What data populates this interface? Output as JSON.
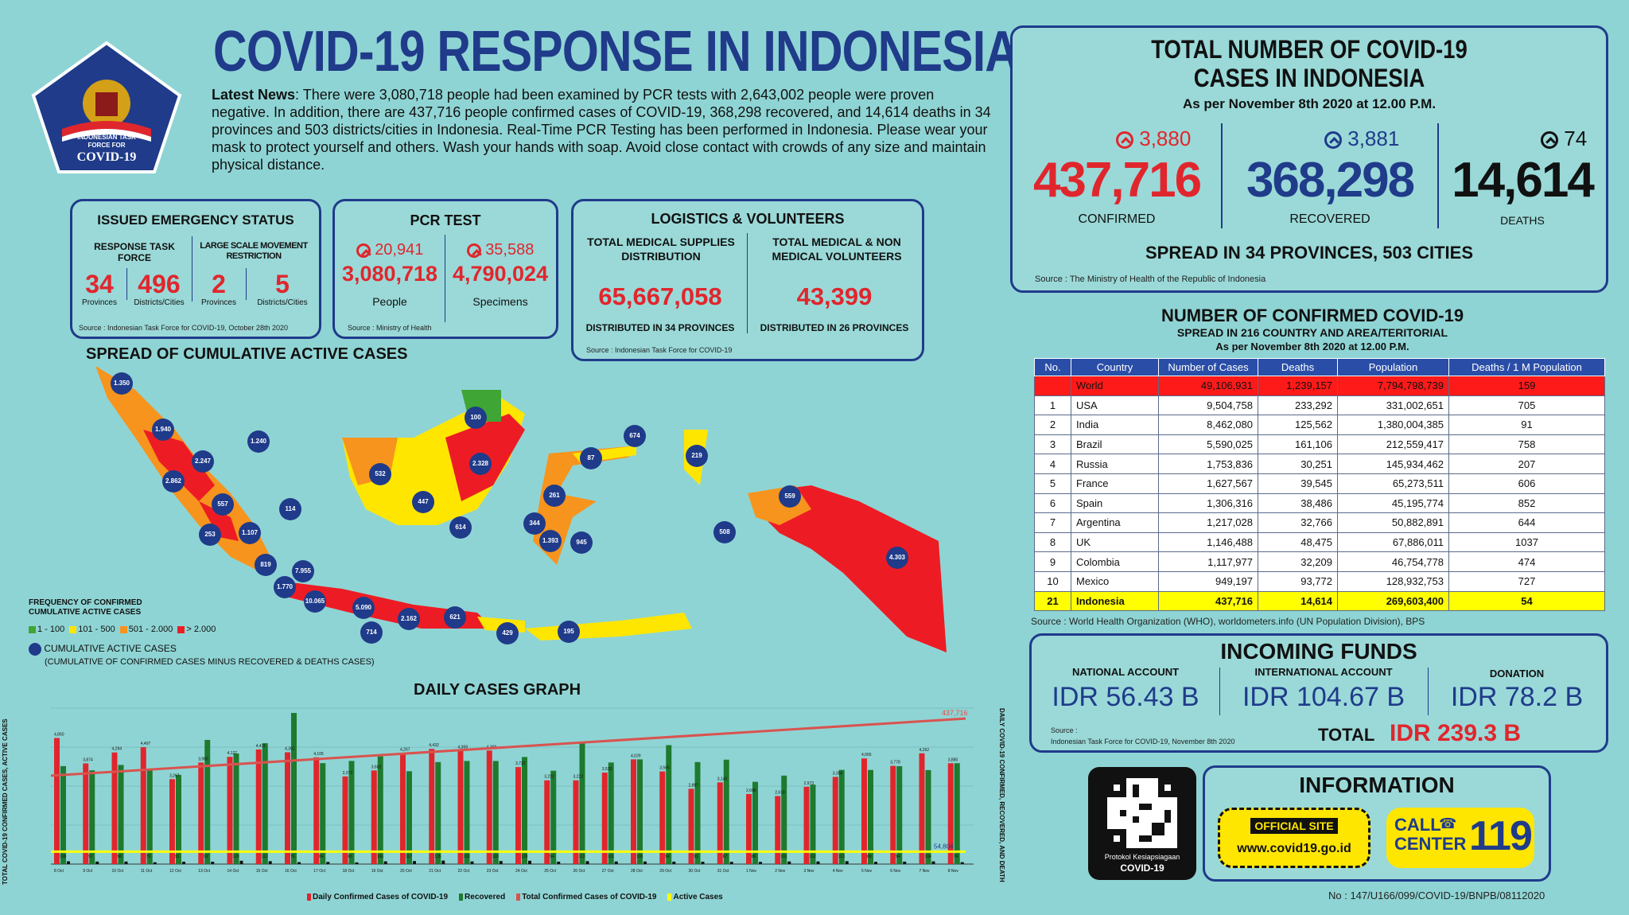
{
  "header": {
    "title": "COVID-19 RESPONSE IN INDONESIA",
    "logo_line1": "INDONESIAN TASK",
    "logo_line2": "FORCE FOR",
    "logo_line3": "COVID-19"
  },
  "news": {
    "label": "Latest News",
    "text": ": There were 3,080,718 people had been examined by PCR tests with 2,643,002 people were proven negative. In addition, there are 437,716 people confirmed cases of COVID-19, 368,298 recovered, and 14,614 deaths in 34 provinces and 503 districts/cities in Indonesia. Real-Time PCR Testing has been performed in Indonesia. Please wear your mask to protect yourself and others. Wash your hands with soap. Avoid close contact with crowds of any size and maintain physical distance."
  },
  "emergency": {
    "title": "ISSUED EMERGENCY STATUS",
    "col1_title": "RESPONSE TASK FORCE",
    "col2_title": "LARGE SCALE MOVEMENT RESTRICTION",
    "v1": "34",
    "l1": "Provinces",
    "v2": "496",
    "l2": "Districts/Cities",
    "v3": "2",
    "l3": "Provinces",
    "v4": "5",
    "l4": "Districts/Cities",
    "source": "Source : Indonesian Task Force for COVID-19, October 28th 2020"
  },
  "pcr": {
    "title": "PCR TEST",
    "people_inc": "20,941",
    "people_val": "3,080,718",
    "people_label": "People",
    "spec_inc": "35,588",
    "spec_val": "4,790,024",
    "spec_label": "Specimens",
    "source": "Source : Ministry of Health"
  },
  "logistics": {
    "title": "LOGISTICS & VOLUNTEERS",
    "c1_title": "TOTAL MEDICAL SUPPLIES DISTRIBUTION",
    "c1_val": "65,667,058",
    "c1_sub": "DISTRIBUTED IN 34 PROVINCES",
    "c2_title": "TOTAL MEDICAL & NON MEDICAL VOLUNTEERS",
    "c2_val": "43,399",
    "c2_sub": "DISTRIBUTED IN 26 PROVINCES",
    "source": "Source : Indonesian Task Force for COVID-19"
  },
  "totals": {
    "title1": "TOTAL NUMBER OF COVID-19",
    "title2": "CASES IN INDONESIA",
    "date": "As per November 8th 2020 at 12.00 P.M.",
    "confirmed_inc": "3,880",
    "confirmed": "437,716",
    "confirmed_label": "CONFIRMED",
    "recovered_inc": "3,881",
    "recovered": "368,298",
    "recovered_label": "RECOVERED",
    "deaths_inc": "74",
    "deaths": "14,614",
    "deaths_label": "DEATHS",
    "spread": "SPREAD IN 34 PROVINCES, 503 CITIES",
    "source": "Source : The Ministry of Health of the Republic of Indonesia"
  },
  "world": {
    "title": "NUMBER OF CONFIRMED COVID-19",
    "subtitle": "SPREAD IN 216 COUNTRY AND AREA/TERITORIAL",
    "date": "As per November 8th 2020 at 12.00 P.M.",
    "headers": [
      "No.",
      "Country",
      "Number of Cases",
      "Deaths",
      "Population",
      "Deaths / 1 M Population"
    ],
    "rows": [
      [
        "",
        "World",
        "49,106,931",
        "1,239,157",
        "7,794,798,739",
        "159"
      ],
      [
        "1",
        "USA",
        "9,504,758",
        "233,292",
        "331,002,651",
        "705"
      ],
      [
        "2",
        "India",
        "8,462,080",
        "125,562",
        "1,380,004,385",
        "91"
      ],
      [
        "3",
        "Brazil",
        "5,590,025",
        "161,106",
        "212,559,417",
        "758"
      ],
      [
        "4",
        "Russia",
        "1,753,836",
        "30,251",
        "145,934,462",
        "207"
      ],
      [
        "5",
        "France",
        "1,627,567",
        "39,545",
        "65,273,511",
        "606"
      ],
      [
        "6",
        "Spain",
        "1,306,316",
        "38,486",
        "45,195,774",
        "852"
      ],
      [
        "7",
        "Argentina",
        "1,217,028",
        "32,766",
        "50,882,891",
        "644"
      ],
      [
        "8",
        "UK",
        "1,146,488",
        "48,475",
        "67,886,011",
        "1037"
      ],
      [
        "9",
        "Colombia",
        "1,117,977",
        "32,209",
        "46,754,778",
        "474"
      ],
      [
        "10",
        "Mexico",
        "949,197",
        "93,772",
        "128,932,753",
        "727"
      ],
      [
        "21",
        "Indonesia",
        "437,716",
        "14,614",
        "269,603,400",
        "54"
      ]
    ],
    "source": "Source : World Health Organization (WHO), worldometers.info (UN Population Division), BPS"
  },
  "funds": {
    "title": "INCOMING FUNDS",
    "national_label": "NATIONAL ACCOUNT",
    "national": "IDR 56.43 B",
    "international_label": "INTERNATIONAL ACCOUNT",
    "international": "IDR 104.67 B",
    "donation_label": "DONATION",
    "donation": "IDR 78.2 B",
    "source1": "Source :",
    "source2": "Indonesian Task Force for COVID-19, November 8th 2020",
    "total_label": "TOTAL",
    "total": "IDR 239.3 B"
  },
  "info": {
    "qr_label1": "Protokol Kesiapsiagaan",
    "qr_label2": "COVID-19",
    "title": "INFORMATION",
    "official_label": "OFFICIAL SITE",
    "official_url": "www.covid19.go.id",
    "call_label1": "CALL",
    "call_label2": "CENTER",
    "call_number": "119"
  },
  "map": {
    "title": "SPREAD OF CUMULATIVE ACTIVE CASES",
    "legend_title1": "FREQUENCY OF CONFIRMED",
    "legend_title2": "CUMULATIVE ACTIVE CASES",
    "legend": [
      {
        "label": "1 - 100",
        "color": "#3fa535"
      },
      {
        "label": "101 - 500",
        "color": "#ffe600"
      },
      {
        "label": "501 - 2.000",
        "color": "#f7941d"
      },
      {
        "label": "> 2.000",
        "color": "#ed1c24"
      }
    ],
    "bubble_legend1": "CUMULATIVE ACTIVE CASES",
    "bubble_legend2": "(CUMULATIVE OF CONFIRMED CASES MINUS RECOVERED & DEATHS CASES)",
    "bubbles": [
      "1.350",
      "1.940",
      "2.247",
      "1.240",
      "2.862",
      "557",
      "114",
      "253",
      "1.107",
      "819",
      "7.955",
      "1.770",
      "10.065",
      "5.090",
      "714",
      "2.162",
      "621",
      "429",
      "195",
      "532",
      "447",
      "614",
      "100",
      "2.328",
      "87",
      "674",
      "219",
      "261",
      "344",
      "1.393",
      "945",
      "508",
      "559",
      "4.303"
    ]
  },
  "daily_chart": {
    "title": "DAILY CASES GRAPH",
    "y_left": "TOTAL COVID-19 CONFIRMED CASES, ACTIVE CASES",
    "y_right": "DAILY COVID-19 CONFIRMED, RECOVERED, AND DEATH",
    "total_label": "437,716",
    "active_label": "54,804",
    "legend": [
      "Daily Confirmed Cases of COVID-19",
      "Recovered",
      "Total Confirmed Cases of COVID-19",
      "Active Cases"
    ],
    "colors": {
      "confirmed": "#e0262d",
      "recovered": "#1e7a2e",
      "total": "#d9534f",
      "active": "#ffff00"
    }
  },
  "chart_data": {
    "type": "bar",
    "title": "DAILY CASES GRAPH",
    "categories": [
      "8 Oct",
      "9 Oct",
      "10 Oct",
      "11 Oct",
      "12 Oct",
      "13 Oct",
      "14 Oct",
      "15 Oct",
      "16 Oct",
      "17 Oct",
      "18 Oct",
      "19 Oct",
      "20 Oct",
      "21 Oct",
      "22 Oct",
      "23 Oct",
      "24 Oct",
      "25 Oct",
      "26 Oct",
      "27 Oct",
      "28 Oct",
      "29 Oct",
      "30 Oct",
      "31 Oct",
      "1 Nov",
      "2 Nov",
      "3 Nov",
      "4 Nov",
      "5 Nov",
      "6 Nov",
      "7 Nov",
      "8 Nov"
    ],
    "series": [
      {
        "name": "Daily Confirmed Cases of COVID-19",
        "values": [
          4850,
          3874,
          4294,
          4497,
          3267,
          3906,
          4127,
          4411,
          4301,
          4105,
          3373,
          3602,
          4267,
          4432,
          4369,
          4369,
          3732,
          3222,
          3222,
          3520,
          4029,
          3565,
          2897,
          3143,
          2696,
          2618,
          2973,
          3356,
          4065,
          3778,
          4262,
          3880
        ]
      },
      {
        "name": "Recovered",
        "values": [
          3769,
          3607,
          3814,
          3636,
          3432,
          4777,
          4255,
          4651,
          5816,
          3883,
          3968,
          4145,
          3573,
          3925,
          3967,
          3967,
          4119,
          3592,
          4648,
          3908,
          4029,
          4576,
          3925,
          4017,
          3165,
          3404,
          3056,
          3624,
          3621,
          3768,
          3616,
          3881
        ]
      },
      {
        "name": "Deaths",
        "values": [
          108,
          97,
          98,
          70,
          91,
          92,
          129,
          112,
          76,
          84,
          65,
          106,
          117,
          135,
          102,
          118,
          128,
          94,
          113,
          101,
          100,
          94,
          91,
          87,
          86,
          101,
          102,
          113,
          89,
          94,
          104,
          74
        ]
      }
    ],
    "annotations": {
      "total_confirmed_last": "437,716",
      "active_last": "54,804",
      "max_label": "5,816"
    }
  },
  "footer": {
    "doc_no": "No : 147/U166/099/COVID-19/BNPB/08112020"
  }
}
